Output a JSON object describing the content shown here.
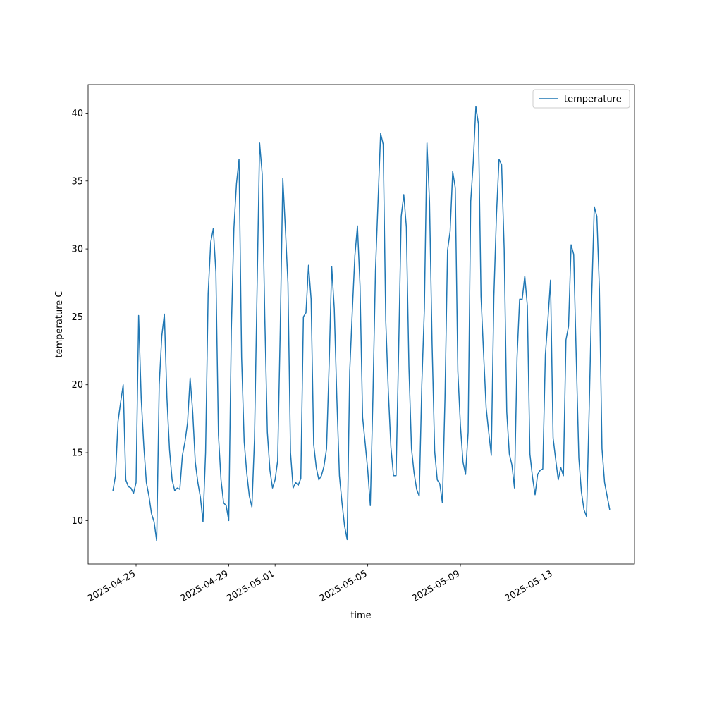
{
  "chart_data": {
    "type": "line",
    "xlabel": "time",
    "ylabel": "temperature C",
    "x": [
      "2025-04-24T00:00",
      "2025-04-24T02:40",
      "2025-04-24T05:20",
      "2025-04-24T08:00",
      "2025-04-24T10:40",
      "2025-04-24T13:20",
      "2025-04-24T16:00",
      "2025-04-24T18:40",
      "2025-04-24T21:20",
      "2025-04-25T00:00",
      "2025-04-25T02:40",
      "2025-04-25T05:20",
      "2025-04-25T08:00",
      "2025-04-25T10:40",
      "2025-04-25T13:20",
      "2025-04-25T16:00",
      "2025-04-25T18:40",
      "2025-04-25T21:20",
      "2025-04-26T00:00",
      "2025-04-26T02:40",
      "2025-04-26T05:20",
      "2025-04-26T08:00",
      "2025-04-26T10:40",
      "2025-04-26T13:20",
      "2025-04-26T16:00",
      "2025-04-26T18:40",
      "2025-04-26T21:20",
      "2025-04-27T00:00",
      "2025-04-27T02:40",
      "2025-04-27T05:20",
      "2025-04-27T08:00",
      "2025-04-27T10:40",
      "2025-04-27T13:20",
      "2025-04-27T16:00",
      "2025-04-27T18:40",
      "2025-04-27T21:20",
      "2025-04-28T00:00",
      "2025-04-28T02:40",
      "2025-04-28T05:20",
      "2025-04-28T08:00",
      "2025-04-28T10:40",
      "2025-04-28T13:20",
      "2025-04-28T16:00",
      "2025-04-28T18:40",
      "2025-04-28T21:20",
      "2025-04-29T00:00",
      "2025-04-29T02:40",
      "2025-04-29T05:20",
      "2025-04-29T08:00",
      "2025-04-29T10:40",
      "2025-04-29T13:20",
      "2025-04-29T16:00",
      "2025-04-29T18:40",
      "2025-04-29T21:20",
      "2025-04-30T00:00",
      "2025-04-30T02:40",
      "2025-04-30T05:20",
      "2025-04-30T08:00",
      "2025-04-30T10:40",
      "2025-04-30T13:20",
      "2025-04-30T16:00",
      "2025-04-30T18:40",
      "2025-04-30T21:20",
      "2025-05-01T00:00",
      "2025-05-01T02:40",
      "2025-05-01T05:20",
      "2025-05-01T08:00",
      "2025-05-01T10:40",
      "2025-05-01T13:20",
      "2025-05-01T16:00",
      "2025-05-01T18:40",
      "2025-05-01T21:20",
      "2025-05-02T00:00",
      "2025-05-02T02:40",
      "2025-05-02T05:20",
      "2025-05-02T08:00",
      "2025-05-02T10:40",
      "2025-05-02T13:20",
      "2025-05-02T16:00",
      "2025-05-02T18:40",
      "2025-05-02T21:20",
      "2025-05-03T00:00",
      "2025-05-03T02:40",
      "2025-05-03T05:20",
      "2025-05-03T08:00",
      "2025-05-03T10:40",
      "2025-05-03T13:20",
      "2025-05-03T16:00",
      "2025-05-03T18:40",
      "2025-05-03T21:20",
      "2025-05-04T00:00",
      "2025-05-04T02:40",
      "2025-05-04T05:20",
      "2025-05-04T08:00",
      "2025-05-04T10:40",
      "2025-05-04T13:20",
      "2025-05-04T16:00",
      "2025-05-04T18:40",
      "2025-05-04T21:20",
      "2025-05-05T00:00",
      "2025-05-05T02:40",
      "2025-05-05T05:20",
      "2025-05-05T08:00",
      "2025-05-05T10:40",
      "2025-05-05T13:20",
      "2025-05-05T16:00",
      "2025-05-05T18:40",
      "2025-05-05T21:20",
      "2025-05-06T00:00",
      "2025-05-06T02:40",
      "2025-05-06T05:20",
      "2025-05-06T08:00",
      "2025-05-06T10:40",
      "2025-05-06T13:20",
      "2025-05-06T16:00",
      "2025-05-06T18:40",
      "2025-05-06T21:20",
      "2025-05-07T00:00",
      "2025-05-07T02:40",
      "2025-05-07T05:20",
      "2025-05-07T08:00",
      "2025-05-07T10:40",
      "2025-05-07T13:20",
      "2025-05-07T16:00",
      "2025-05-07T18:40",
      "2025-05-07T21:20",
      "2025-05-08T00:00",
      "2025-05-08T02:40",
      "2025-05-08T05:20",
      "2025-05-08T08:00",
      "2025-05-08T10:40",
      "2025-05-08T13:20",
      "2025-05-08T16:00",
      "2025-05-08T18:40",
      "2025-05-08T21:20",
      "2025-05-09T00:00",
      "2025-05-09T02:40",
      "2025-05-09T05:20",
      "2025-05-09T08:00",
      "2025-05-09T10:40",
      "2025-05-09T13:20",
      "2025-05-09T16:00",
      "2025-05-09T18:40",
      "2025-05-09T21:20",
      "2025-05-10T00:00",
      "2025-05-10T02:40",
      "2025-05-10T05:20",
      "2025-05-10T08:00",
      "2025-05-10T10:40",
      "2025-05-10T13:20",
      "2025-05-10T16:00",
      "2025-05-10T18:40",
      "2025-05-10T21:20",
      "2025-05-11T00:00",
      "2025-05-11T02:40",
      "2025-05-11T05:20",
      "2025-05-11T08:00",
      "2025-05-11T10:40",
      "2025-05-11T13:20",
      "2025-05-11T16:00",
      "2025-05-11T18:40",
      "2025-05-11T21:20",
      "2025-05-12T00:00",
      "2025-05-12T02:40",
      "2025-05-12T05:20",
      "2025-05-12T08:00",
      "2025-05-12T10:40",
      "2025-05-12T13:20",
      "2025-05-12T16:00",
      "2025-05-12T18:40",
      "2025-05-12T21:20",
      "2025-05-13T00:00",
      "2025-05-13T02:40",
      "2025-05-13T05:20",
      "2025-05-13T08:00",
      "2025-05-13T10:40",
      "2025-05-13T13:20",
      "2025-05-13T16:00",
      "2025-05-13T18:40",
      "2025-05-13T21:20",
      "2025-05-14T00:00",
      "2025-05-14T02:40",
      "2025-05-14T05:20",
      "2025-05-14T08:00",
      "2025-05-14T10:40",
      "2025-05-14T13:20",
      "2025-05-14T16:00",
      "2025-05-14T18:40",
      "2025-05-14T21:20",
      "2025-05-15T00:00",
      "2025-05-15T02:40",
      "2025-05-15T05:20",
      "2025-05-15T08:00",
      "2025-05-15T10:40"
    ],
    "series": [
      {
        "name": "temperature",
        "color": "#1f77b4",
        "values": [
          12.2,
          13.3,
          17.3,
          18.7,
          20.0,
          13.0,
          12.5,
          12.4,
          12.0,
          12.8,
          25.1,
          19.0,
          15.5,
          12.8,
          11.8,
          10.5,
          9.9,
          8.5,
          20.0,
          23.6,
          25.2,
          19.0,
          15.2,
          13.0,
          12.2,
          12.4,
          12.3,
          14.8,
          15.8,
          17.2,
          20.5,
          18.0,
          14.3,
          12.8,
          11.7,
          9.9,
          15.0,
          26.7,
          30.5,
          31.5,
          28.3,
          16.3,
          13.0,
          11.3,
          11.1,
          10.0,
          24.0,
          31.5,
          34.8,
          36.6,
          22.0,
          15.8,
          13.5,
          11.8,
          11.0,
          16.0,
          27.0,
          37.8,
          35.5,
          25.0,
          16.5,
          13.7,
          12.4,
          13.0,
          14.4,
          24.0,
          35.2,
          31.5,
          27.5,
          15.0,
          12.4,
          12.8,
          12.6,
          13.1,
          25.0,
          25.3,
          28.8,
          26.3,
          15.6,
          13.9,
          13.0,
          13.3,
          14.0,
          15.3,
          21.5,
          28.7,
          25.6,
          19.0,
          13.3,
          11.3,
          9.6,
          8.6,
          21.0,
          25.4,
          29.5,
          31.7,
          27.3,
          17.6,
          15.7,
          13.7,
          11.1,
          19.0,
          28.4,
          33.5,
          38.5,
          37.7,
          24.7,
          19.5,
          15.4,
          13.3,
          13.3,
          22.5,
          32.4,
          34.0,
          31.6,
          21.3,
          15.3,
          13.5,
          12.3,
          11.8,
          20.0,
          25.6,
          37.8,
          33.5,
          23.0,
          15.1,
          13.0,
          12.7,
          11.3,
          19.0,
          29.9,
          31.3,
          35.7,
          34.5,
          21.0,
          17.0,
          14.3,
          13.4,
          16.5,
          33.5,
          36.4,
          40.5,
          39.2,
          26.5,
          22.3,
          18.3,
          16.5,
          14.8,
          26.5,
          32.5,
          36.6,
          36.2,
          30.0,
          18.0,
          14.9,
          14.1,
          12.4,
          22.0,
          26.3,
          26.3,
          28.0,
          25.8,
          14.9,
          13.2,
          11.9,
          13.4,
          13.7,
          13.8,
          22.2,
          24.8,
          27.7,
          16.1,
          14.5,
          13.0,
          13.9,
          13.3,
          23.3,
          24.3,
          30.3,
          29.6,
          22.0,
          14.6,
          12.1,
          10.8,
          10.3,
          18.0,
          26.5,
          33.1,
          32.4,
          27.0,
          15.3,
          12.8,
          11.8,
          10.8
        ]
      }
    ],
    "xlim": [
      "2025-04-22T22:20",
      "2025-05-16T12:20"
    ],
    "xticks": [
      "2025-04-25",
      "2025-04-29",
      "2025-05-01",
      "2025-05-05",
      "2025-05-09",
      "2025-05-13"
    ],
    "ylim": [
      6.8,
      42.1
    ],
    "yticks": [
      10,
      15,
      20,
      25,
      30,
      35,
      40
    ],
    "legend": "upper right"
  }
}
